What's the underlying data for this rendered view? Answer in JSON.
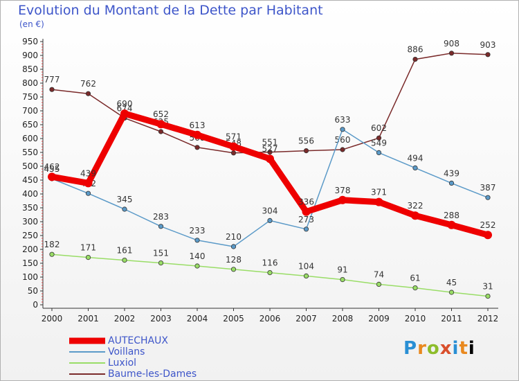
{
  "chart_data": {
    "type": "line",
    "title": "Evolution du Montant de la Dette par Habitant",
    "subtitle": "(en €)",
    "xlabel": "",
    "ylabel": "",
    "categories": [
      "2000",
      "2001",
      "2002",
      "2003",
      "2004",
      "2005",
      "2006",
      "2007",
      "2008",
      "2009",
      "2010",
      "2011",
      "2012"
    ],
    "yticks": [
      "0",
      "50",
      "100",
      "150",
      "200",
      "250",
      "300",
      "350",
      "400",
      "450",
      "500",
      "550",
      "600",
      "650",
      "700",
      "750",
      "800",
      "850",
      "900",
      "950"
    ],
    "ylim": [
      0,
      950
    ],
    "grid": false,
    "legend_position": "bottom-left",
    "series": [
      {
        "name": "AUTECHAUX",
        "color": "#ee0000",
        "values": [
          462,
          439,
          690,
          652,
          613,
          571,
          527,
          336,
          378,
          371,
          322,
          288,
          252
        ]
      },
      {
        "name": "Voillans",
        "color": "#5b9ac8",
        "values": [
          455,
          402,
          345,
          283,
          233,
          210,
          304,
          273,
          633,
          549,
          494,
          439,
          387
        ]
      },
      {
        "name": "Luxiol",
        "color": "#99dd66",
        "values": [
          182,
          171,
          161,
          151,
          140,
          128,
          116,
          104,
          91,
          74,
          61,
          45,
          31
        ]
      },
      {
        "name": "Baume-les-Dames",
        "color": "#7a2a2a",
        "values": [
          777,
          762,
          674,
          625,
          568,
          548,
          551,
          556,
          560,
          602,
          886,
          908,
          903
        ]
      }
    ]
  },
  "brand": {
    "letters": [
      "P",
      "r",
      "o",
      "x",
      "i",
      "t",
      "i"
    ]
  }
}
